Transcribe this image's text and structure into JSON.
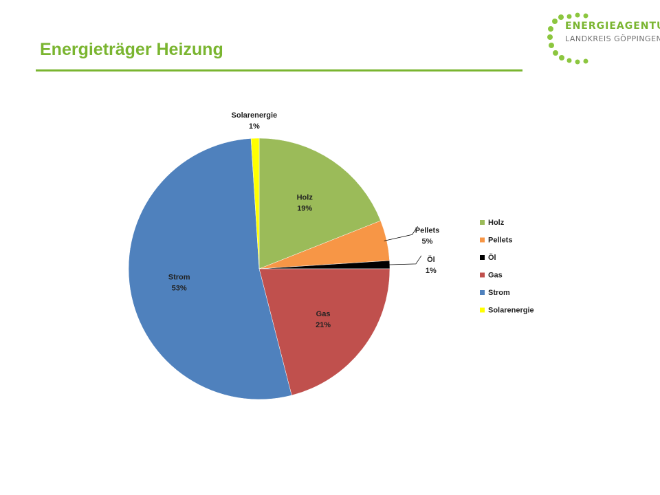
{
  "page": {
    "title": "Energieträger Heizung"
  },
  "logo": {
    "name": "ENERGIEAGENTUR",
    "sub": "LANDKREIS GÖPPINGEN",
    "accent": "#8cc63f"
  },
  "chart_data": {
    "type": "pie",
    "title": "",
    "legend_position": "right",
    "slices": [
      {
        "name": "Holz",
        "value": 19,
        "label": "19%",
        "color": "#9bbb59"
      },
      {
        "name": "Pellets",
        "value": 5,
        "label": "5%",
        "color": "#f79646"
      },
      {
        "name": "Öl",
        "value": 1,
        "label": "1%",
        "color": "#000000"
      },
      {
        "name": "Gas",
        "value": 21,
        "label": "21%",
        "color": "#c0504d"
      },
      {
        "name": "Strom",
        "value": 53,
        "label": "53%",
        "color": "#4f81bd"
      },
      {
        "name": "Solarenergie",
        "value": 1,
        "label": "1%",
        "color": "#ffff00"
      }
    ]
  }
}
